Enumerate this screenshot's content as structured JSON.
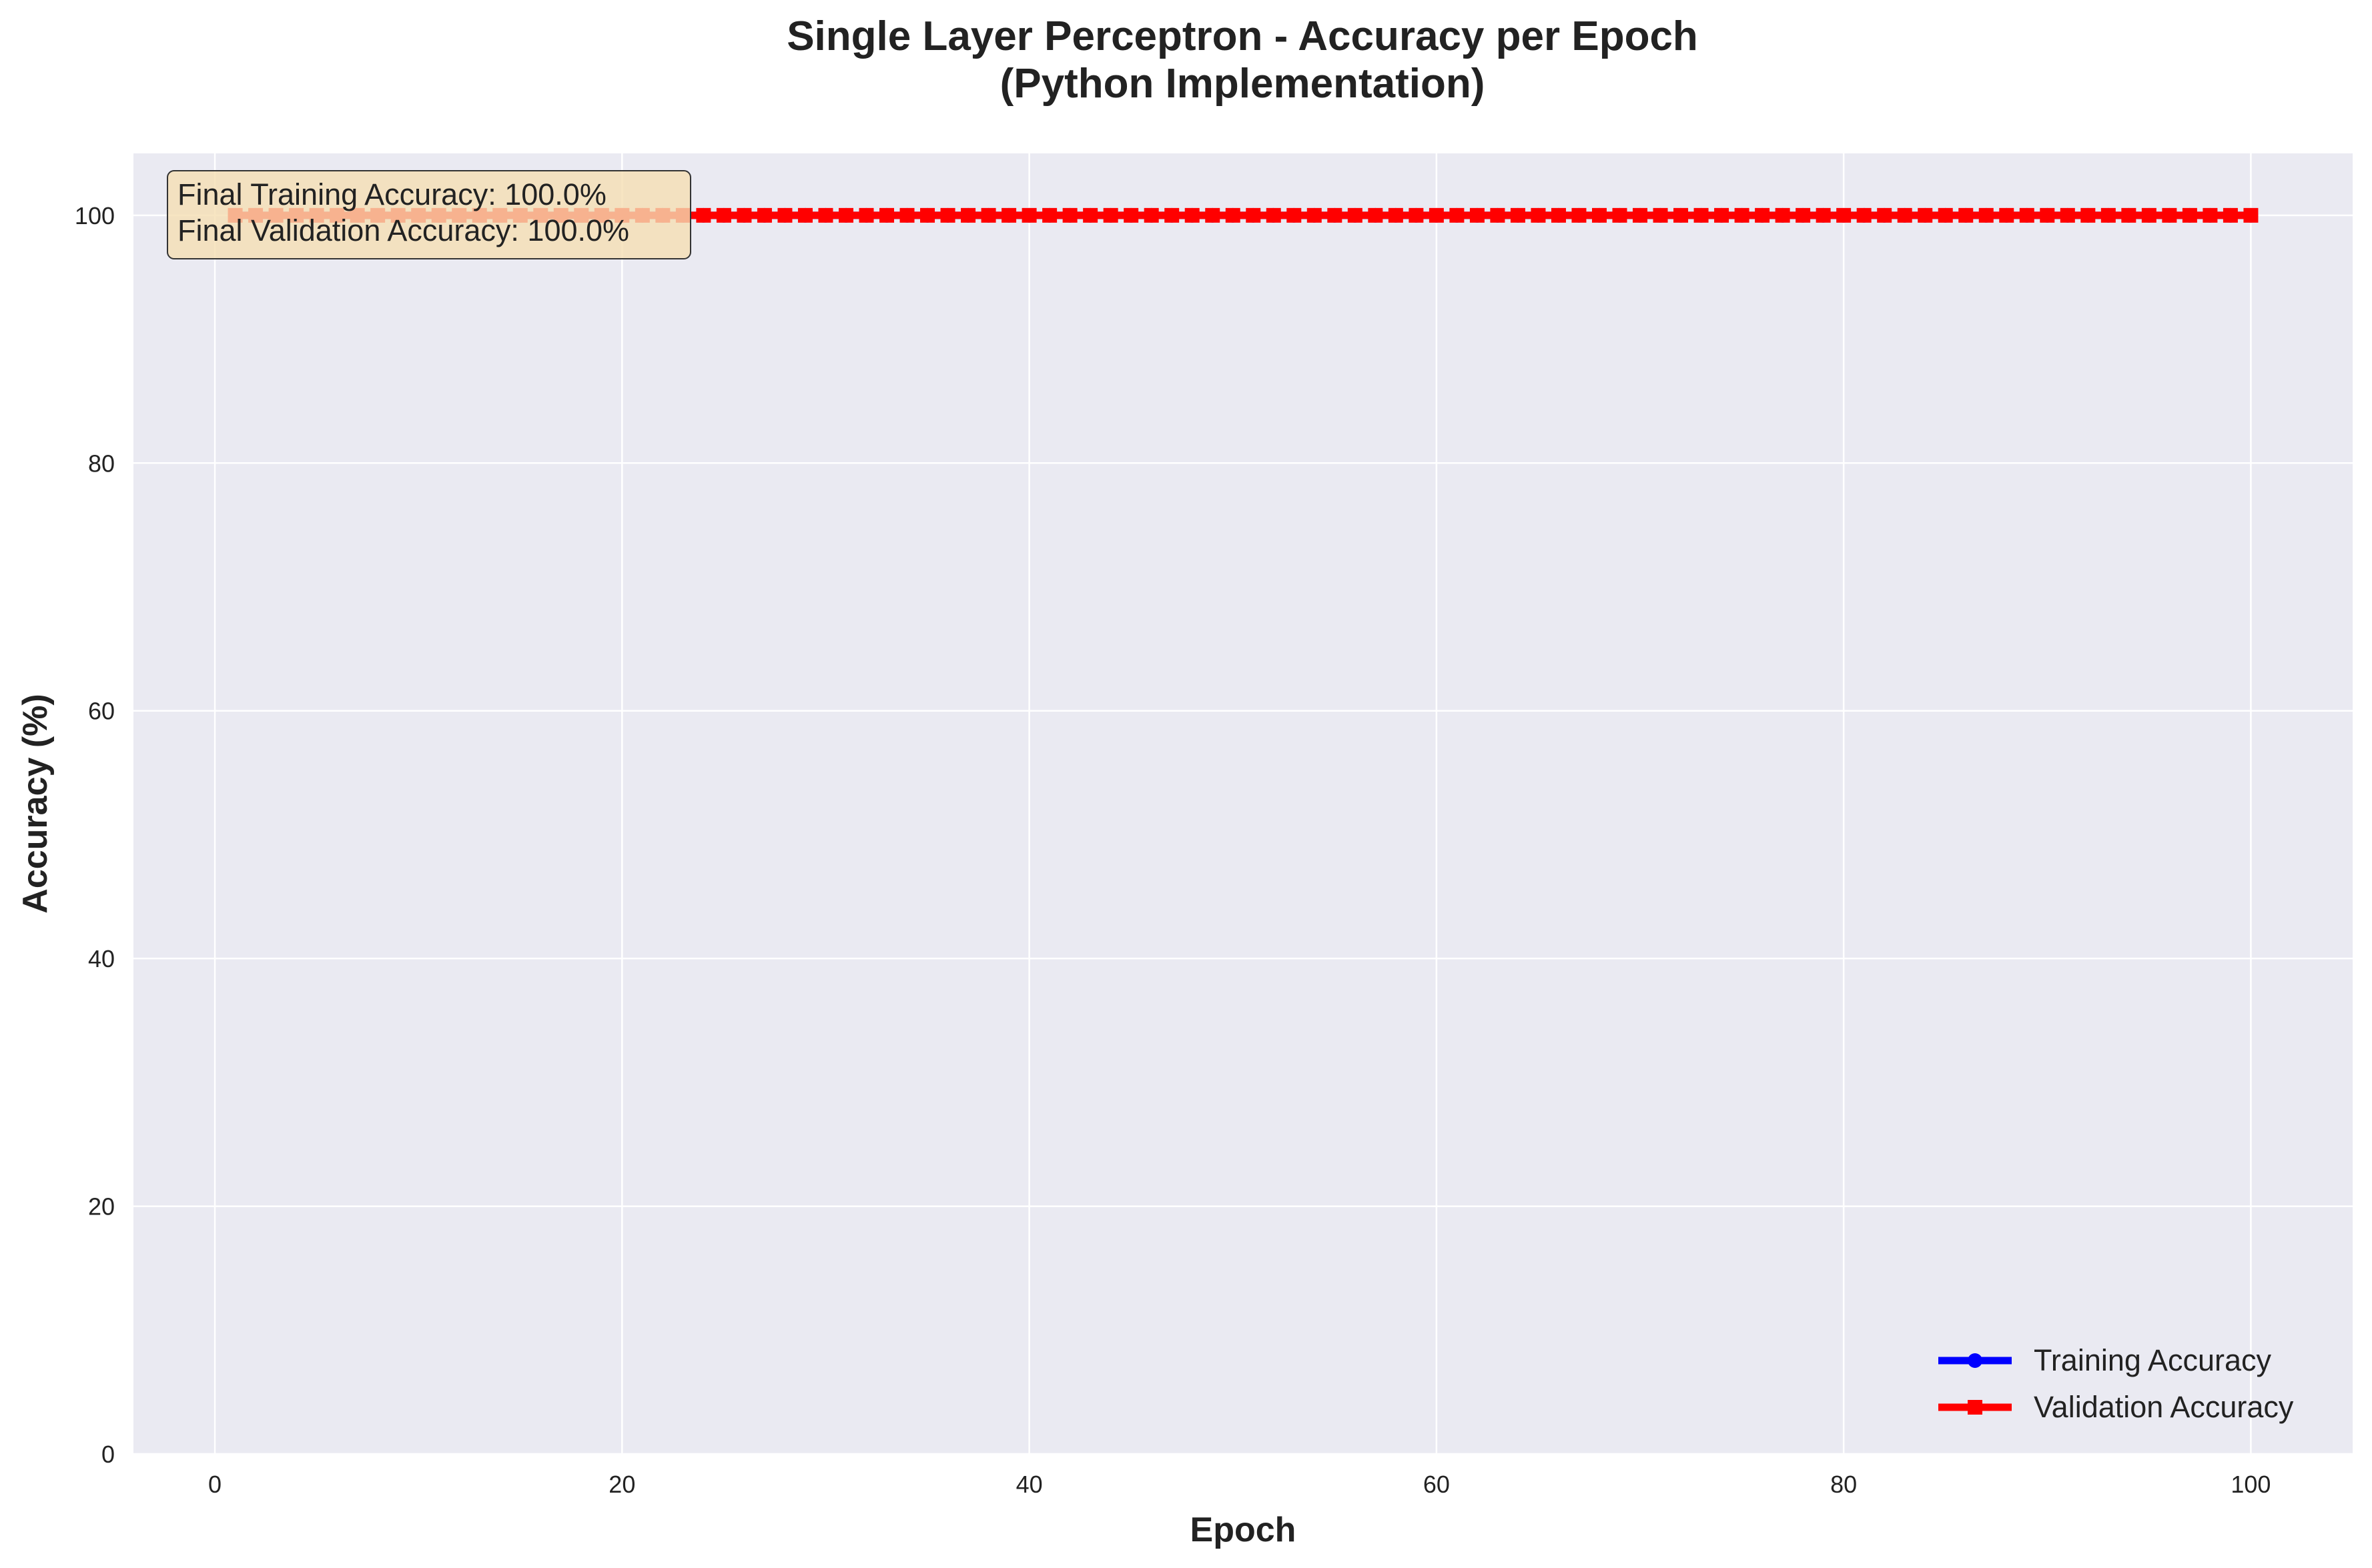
{
  "chart_data": {
    "type": "line",
    "title": "Single Layer Perceptron - Accuracy per Epoch",
    "subtitle": "(Python Implementation)",
    "xlabel": "Epoch",
    "ylabel": "Accuracy (%)",
    "xlim": [
      -4,
      105
    ],
    "ylim": [
      0,
      105
    ],
    "xticks": [
      0,
      20,
      40,
      60,
      80,
      100
    ],
    "yticks": [
      0,
      20,
      40,
      60,
      80,
      100
    ],
    "grid": true,
    "legend_position": "bottom-right",
    "background_color": "#eaeaf2",
    "annotation": {
      "lines": [
        "Final Training Accuracy: 100.0%",
        "Final Validation Accuracy: 100.0%"
      ],
      "box_color": "#f5deb3"
    },
    "series": [
      {
        "name": "Training Accuracy",
        "color": "#0000ff",
        "marker": "circle",
        "x_start": 1,
        "x_end": 100,
        "constant_value": 100.0
      },
      {
        "name": "Validation Accuracy",
        "color": "#ff0000",
        "marker": "square",
        "x_start": 1,
        "x_end": 100,
        "constant_value": 100.0
      }
    ]
  }
}
